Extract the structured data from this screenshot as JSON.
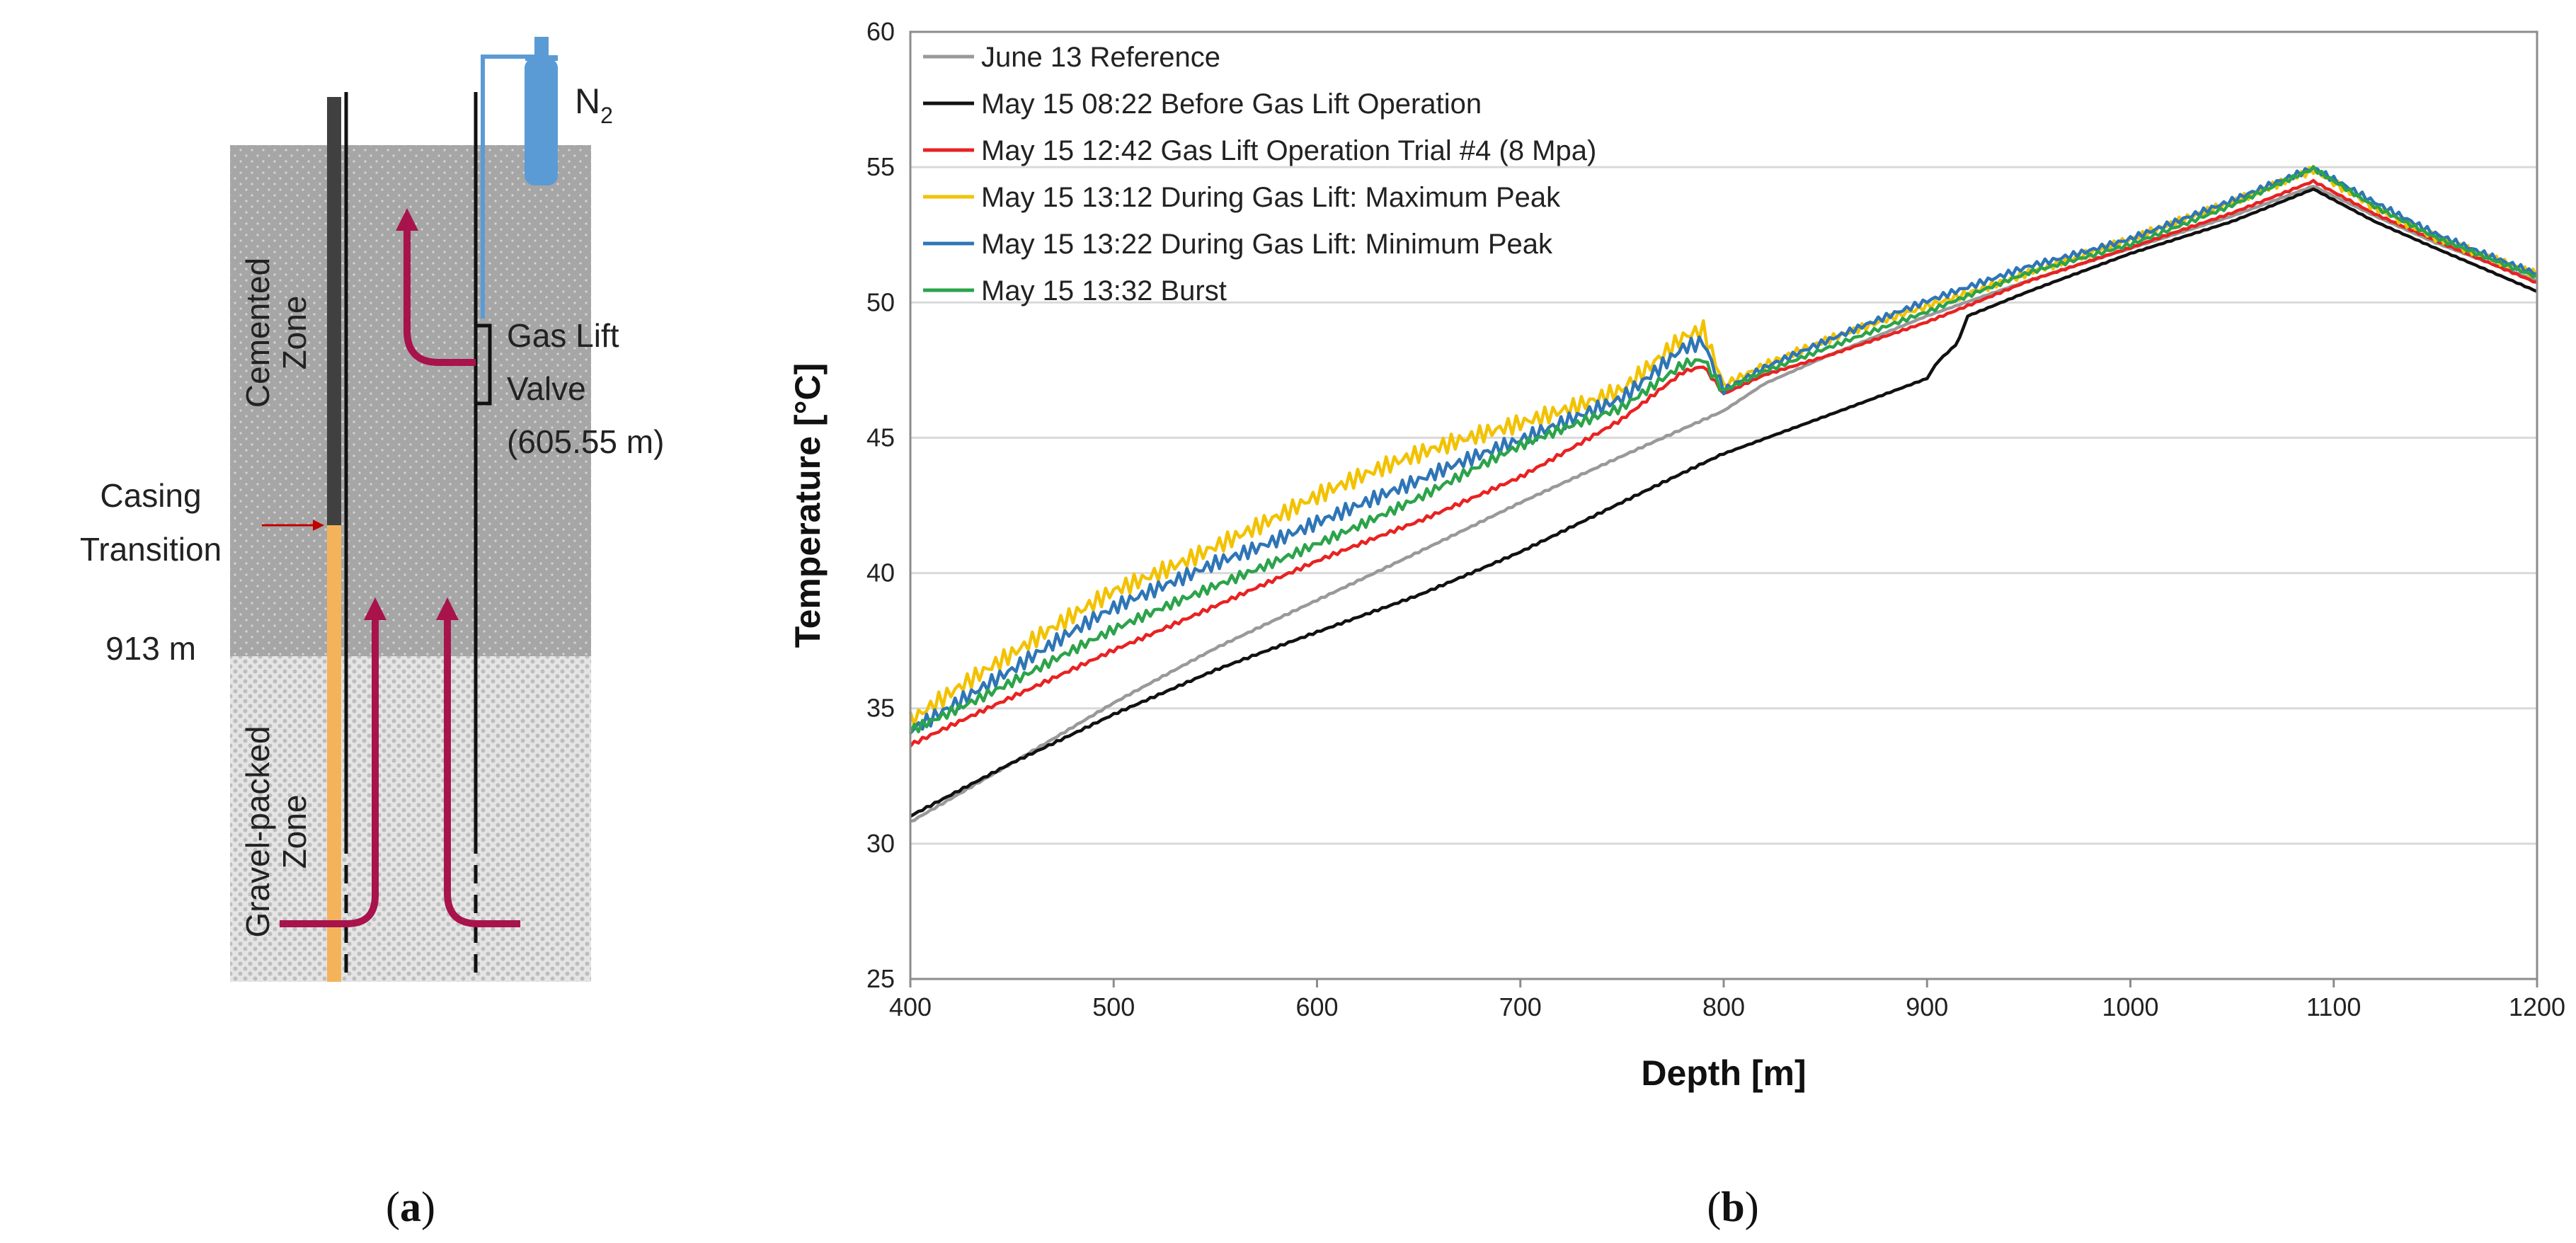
{
  "panel_a": {
    "n2_main": "N",
    "n2_sub": "2",
    "cemented_zone": [
      "Cemented",
      "Zone"
    ],
    "gas_lift_valve": [
      "Gas Lift",
      "Valve",
      "(605.55 m)"
    ],
    "casing_transition": [
      "Casing",
      "Transition"
    ],
    "depth_marker": "913 m",
    "gravel_zone": [
      "Gravel-packed",
      "Zone"
    ],
    "caption": "a",
    "colors": {
      "arrow": "#a8134c",
      "nitrogen": "#5b9bd5",
      "casing_upper": "#404040",
      "casing_lower": "#f4b35a",
      "zone_cemented": "#a6a6a6",
      "zone_gravel": "#d9d9d9"
    }
  },
  "panel_b": {
    "caption": "b"
  },
  "chart_data": {
    "type": "line",
    "title": "",
    "xlabel": "Depth [m]",
    "ylabel": "Temperature [°C]",
    "xlim": [
      400,
      1200
    ],
    "ylim": [
      25,
      60
    ],
    "xticks": [
      "400",
      "500",
      "600",
      "700",
      "800",
      "900",
      "1000",
      "1100",
      "1200"
    ],
    "yticks": [
      "25",
      "30",
      "35",
      "40",
      "45",
      "50",
      "55",
      "60"
    ],
    "grid": "horizontal",
    "legend_position": "top-left",
    "series": [
      {
        "name": "June 13 Reference",
        "color": "#999999",
        "x": [
          400,
          450,
          500,
          550,
          600,
          650,
          700,
          750,
          800,
          820,
          850,
          900,
          950,
          1000,
          1050,
          1090,
          1120,
          1150,
          1200
        ],
        "y": [
          30.8,
          33.0,
          35.2,
          37.2,
          39.0,
          40.8,
          42.6,
          44.3,
          46.0,
          47.0,
          48.0,
          49.5,
          50.8,
          52.0,
          53.2,
          54.3,
          53.2,
          52.2,
          50.8
        ]
      },
      {
        "name": "May 15 08:22 Before Gas Lift Operation",
        "color": "#111111",
        "x": [
          400,
          450,
          500,
          550,
          600,
          650,
          700,
          750,
          800,
          850,
          900,
          905,
          915,
          920,
          950,
          1000,
          1050,
          1090,
          1120,
          1150,
          1200
        ],
        "y": [
          31.0,
          33.0,
          34.8,
          36.4,
          37.8,
          39.2,
          40.8,
          42.6,
          44.4,
          45.8,
          47.2,
          47.8,
          48.5,
          49.5,
          50.4,
          51.8,
          53.0,
          54.2,
          53.0,
          52.0,
          50.4
        ]
      },
      {
        "name": "May 15 12:42 Gas Lift Operation Trial #4 (8 Mpa)",
        "color": "#e82222",
        "x": [
          400,
          450,
          500,
          550,
          600,
          650,
          700,
          750,
          780,
          790,
          800,
          820,
          850,
          900,
          950,
          1000,
          1050,
          1090,
          1120,
          1150,
          1200
        ],
        "y": [
          33.6,
          35.4,
          37.2,
          38.8,
          40.4,
          41.9,
          43.6,
          45.7,
          47.4,
          47.6,
          46.6,
          47.3,
          48.0,
          49.3,
          50.8,
          52.0,
          53.3,
          54.5,
          53.3,
          52.3,
          50.7
        ]
      },
      {
        "name": "May 15 13:12 During Gas Lift: Maximum Peak",
        "color": "#f2c200",
        "x": [
          400,
          450,
          500,
          550,
          600,
          650,
          700,
          750,
          780,
          790,
          800,
          820,
          850,
          900,
          950,
          1000,
          1050,
          1090,
          1120,
          1150,
          1200
        ],
        "y": [
          34.5,
          36.8,
          39.4,
          41.2,
          42.8,
          44.2,
          45.6,
          47.0,
          48.8,
          49.0,
          46.9,
          47.6,
          48.5,
          49.9,
          51.2,
          52.3,
          53.6,
          54.9,
          53.6,
          52.5,
          51.0
        ]
      },
      {
        "name": "May 15 13:22 During Gas Lift: Minimum Peak",
        "color": "#2e75b6",
        "x": [
          400,
          450,
          500,
          550,
          600,
          650,
          700,
          750,
          780,
          790,
          800,
          820,
          850,
          900,
          950,
          1000,
          1050,
          1090,
          1120,
          1150,
          1200
        ],
        "y": [
          34.3,
          36.3,
          38.6,
          40.5,
          42.0,
          43.3,
          44.8,
          46.6,
          48.5,
          48.7,
          46.8,
          47.6,
          48.5,
          50.0,
          51.4,
          52.4,
          53.7,
          54.9,
          53.7,
          52.6,
          51.1
        ]
      },
      {
        "name": "May 15 13:32 Burst",
        "color": "#2ca34a",
        "x": [
          400,
          450,
          500,
          550,
          600,
          650,
          700,
          750,
          780,
          790,
          800,
          820,
          850,
          900,
          950,
          1000,
          1050,
          1090,
          1120,
          1150,
          1200
        ],
        "y": [
          34.3,
          36.0,
          37.8,
          39.5,
          41.2,
          42.8,
          44.6,
          46.1,
          47.8,
          48.0,
          46.8,
          47.5,
          48.3,
          49.6,
          51.1,
          52.2,
          53.6,
          54.9,
          53.5,
          52.4,
          51.0
        ]
      }
    ]
  }
}
